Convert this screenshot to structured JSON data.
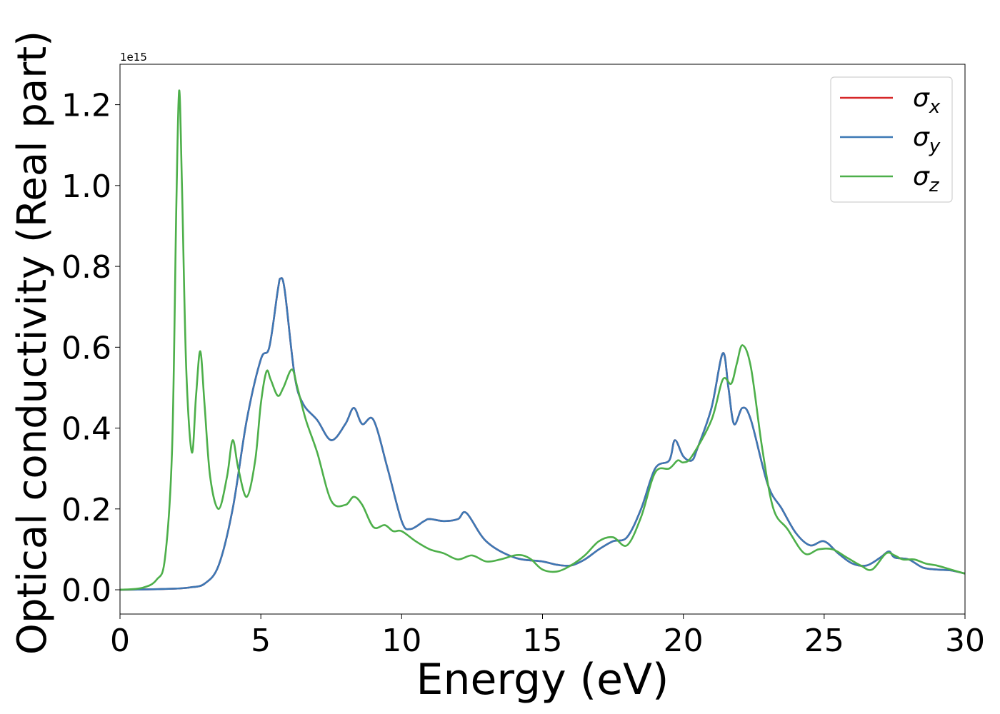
{
  "chart_data": {
    "type": "line",
    "xlabel": "Energy (eV)",
    "ylabel": "Optical conductivity (Real part)",
    "y_offset_label": "1e15",
    "xlim": [
      0,
      30
    ],
    "ylim": [
      -0.06,
      1.3
    ],
    "xticks": [
      0,
      5,
      10,
      15,
      20,
      25,
      30
    ],
    "xtick_labels": [
      "0",
      "5",
      "10",
      "15",
      "20",
      "25",
      "30"
    ],
    "yticks": [
      0.0,
      0.2,
      0.4,
      0.6,
      0.8,
      1.0,
      1.2
    ],
    "ytick_labels": [
      "0.0",
      "0.2",
      "0.4",
      "0.6",
      "0.8",
      "1.0",
      "1.2"
    ],
    "grid": false,
    "legend_position": "top-right",
    "series": [
      {
        "name": "σx",
        "legend_base": "σ",
        "legend_sub": "x",
        "color": "#d62728",
        "x": [
          0,
          1,
          2,
          2.5,
          3,
          3.5,
          4,
          4.5,
          5,
          5.3,
          5.6,
          5.7,
          5.85,
          6.2,
          6.5,
          7,
          7.5,
          8,
          8.3,
          8.6,
          9,
          9.5,
          10,
          10.3,
          10.8,
          11,
          11.5,
          12,
          12.3,
          13,
          14,
          15,
          15.5,
          16,
          16.5,
          17,
          17.5,
          18,
          18.5,
          19,
          19.5,
          19.7,
          20,
          20.3,
          20.5,
          21,
          21.4,
          21.6,
          21.8,
          22.1,
          22.4,
          23,
          23.5,
          24,
          24.5,
          25,
          25.5,
          26,
          26.5,
          27,
          27.3,
          27.5,
          28,
          28.5,
          29,
          29.5,
          30
        ],
        "values": [
          0,
          0.001,
          0.003,
          0.006,
          0.015,
          0.06,
          0.2,
          0.42,
          0.57,
          0.6,
          0.74,
          0.77,
          0.74,
          0.53,
          0.46,
          0.42,
          0.37,
          0.41,
          0.45,
          0.41,
          0.42,
          0.3,
          0.17,
          0.15,
          0.17,
          0.175,
          0.17,
          0.175,
          0.19,
          0.12,
          0.08,
          0.07,
          0.062,
          0.06,
          0.075,
          0.1,
          0.12,
          0.13,
          0.2,
          0.3,
          0.32,
          0.37,
          0.33,
          0.32,
          0.35,
          0.45,
          0.585,
          0.5,
          0.41,
          0.45,
          0.42,
          0.26,
          0.2,
          0.14,
          0.11,
          0.12,
          0.09,
          0.065,
          0.06,
          0.08,
          0.095,
          0.08,
          0.075,
          0.055,
          0.05,
          0.048,
          0.04
        ]
      },
      {
        "name": "σy",
        "legend_base": "σ",
        "legend_sub": "y",
        "color": "#3c78b5",
        "x": [
          0,
          1,
          2,
          2.5,
          3,
          3.5,
          4,
          4.5,
          5,
          5.3,
          5.6,
          5.7,
          5.85,
          6.2,
          6.5,
          7,
          7.5,
          8,
          8.3,
          8.6,
          9,
          9.5,
          10,
          10.3,
          10.8,
          11,
          11.5,
          12,
          12.3,
          13,
          14,
          15,
          15.5,
          16,
          16.5,
          17,
          17.5,
          18,
          18.5,
          19,
          19.5,
          19.7,
          20,
          20.3,
          20.5,
          21,
          21.4,
          21.6,
          21.8,
          22.1,
          22.4,
          23,
          23.5,
          24,
          24.5,
          25,
          25.5,
          26,
          26.5,
          27,
          27.3,
          27.5,
          28,
          28.5,
          29,
          29.5,
          30
        ],
        "values": [
          0,
          0.001,
          0.003,
          0.006,
          0.015,
          0.06,
          0.2,
          0.42,
          0.57,
          0.6,
          0.74,
          0.77,
          0.74,
          0.53,
          0.46,
          0.42,
          0.37,
          0.41,
          0.45,
          0.41,
          0.42,
          0.3,
          0.17,
          0.15,
          0.17,
          0.175,
          0.17,
          0.175,
          0.19,
          0.12,
          0.08,
          0.07,
          0.062,
          0.06,
          0.075,
          0.1,
          0.12,
          0.13,
          0.2,
          0.3,
          0.32,
          0.37,
          0.33,
          0.32,
          0.35,
          0.45,
          0.585,
          0.5,
          0.41,
          0.45,
          0.42,
          0.26,
          0.2,
          0.14,
          0.11,
          0.12,
          0.09,
          0.065,
          0.06,
          0.08,
          0.095,
          0.08,
          0.075,
          0.055,
          0.05,
          0.048,
          0.04
        ]
      },
      {
        "name": "σz",
        "legend_base": "σ",
        "legend_sub": "z",
        "color": "#4daf4a",
        "x": [
          0,
          0.8,
          1.3,
          1.6,
          1.85,
          2.0,
          2.1,
          2.2,
          2.35,
          2.55,
          2.7,
          2.85,
          3.0,
          3.2,
          3.5,
          3.8,
          4.0,
          4.2,
          4.5,
          4.8,
          5.0,
          5.2,
          5.35,
          5.6,
          5.8,
          6.1,
          6.3,
          6.6,
          7.0,
          7.5,
          8.0,
          8.3,
          8.6,
          9.0,
          9.4,
          9.7,
          10.0,
          10.5,
          11.0,
          11.5,
          12.0,
          12.5,
          13.0,
          13.5,
          14.0,
          14.3,
          14.6,
          15.0,
          15.5,
          16.0,
          16.5,
          17.0,
          17.5,
          18.0,
          18.5,
          19.0,
          19.5,
          19.8,
          20.0,
          20.3,
          21.0,
          21.4,
          21.7,
          21.9,
          22.1,
          22.4,
          22.8,
          23.2,
          23.7,
          24.3,
          24.8,
          25.3,
          25.8,
          26.3,
          26.7,
          27.2,
          27.5,
          27.8,
          28.2,
          28.6,
          29.0,
          29.5,
          30.0
        ],
        "values": [
          0,
          0.005,
          0.025,
          0.08,
          0.35,
          0.95,
          1.235,
          1.0,
          0.55,
          0.34,
          0.48,
          0.59,
          0.46,
          0.28,
          0.2,
          0.28,
          0.37,
          0.3,
          0.23,
          0.32,
          0.46,
          0.54,
          0.52,
          0.48,
          0.5,
          0.545,
          0.5,
          0.42,
          0.34,
          0.22,
          0.21,
          0.23,
          0.21,
          0.155,
          0.16,
          0.145,
          0.145,
          0.12,
          0.1,
          0.09,
          0.075,
          0.085,
          0.07,
          0.075,
          0.085,
          0.085,
          0.075,
          0.05,
          0.045,
          0.06,
          0.085,
          0.12,
          0.13,
          0.11,
          0.18,
          0.29,
          0.3,
          0.32,
          0.315,
          0.33,
          0.42,
          0.52,
          0.51,
          0.56,
          0.605,
          0.55,
          0.35,
          0.2,
          0.15,
          0.09,
          0.1,
          0.1,
          0.08,
          0.06,
          0.05,
          0.09,
          0.085,
          0.075,
          0.075,
          0.065,
          0.06,
          0.05,
          0.04
        ]
      }
    ]
  }
}
